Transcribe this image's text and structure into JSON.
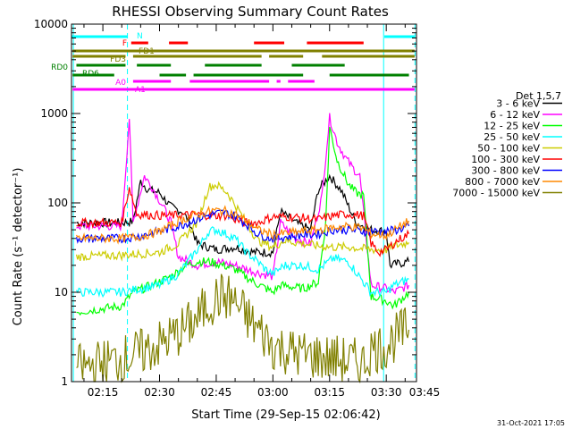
{
  "chart_data": {
    "type": "line",
    "title": "RHESSI Observing Summary Count Rates",
    "xlabel": "Start Time (29-Sep-15 02:06:42)",
    "ylabel": "Count Rate (s⁻¹ detector⁻¹)",
    "y_scale": "log",
    "ylim": [
      1,
      10000
    ],
    "xlim_minutes": [
      6.7,
      98.0
    ],
    "x_ticks": [
      {
        "m": 15,
        "label": "02:15"
      },
      {
        "m": 30,
        "label": "02:30"
      },
      {
        "m": 45,
        "label": "02:45"
      },
      {
        "m": 60,
        "label": "03:00"
      },
      {
        "m": 75,
        "label": "03:15"
      },
      {
        "m": 90,
        "label": "03:30"
      },
      {
        "m": 105,
        "label": "03:45"
      }
    ],
    "y_ticks": [
      {
        "v": 1,
        "label": "1"
      },
      {
        "v": 10,
        "label": "10"
      },
      {
        "v": 100,
        "label": "100"
      },
      {
        "v": 1000,
        "label": "1000"
      },
      {
        "v": 10000,
        "label": "10000"
      }
    ],
    "legend_title": "Det 1,5,7",
    "legend_position": "right",
    "series": [
      {
        "name": "3 - 6 keV",
        "color": "#000000",
        "points": [
          [
            8,
            60
          ],
          [
            20,
            60
          ],
          [
            23,
            62
          ],
          [
            25,
            175
          ],
          [
            27,
            140
          ],
          [
            30,
            130
          ],
          [
            33,
            90
          ],
          [
            36,
            80
          ],
          [
            38,
            60
          ],
          [
            40,
            35
          ],
          [
            45,
            30
          ],
          [
            50,
            32
          ],
          [
            55,
            28
          ],
          [
            60,
            28
          ],
          [
            62,
            80
          ],
          [
            66,
            60
          ],
          [
            70,
            50
          ],
          [
            72,
            140
          ],
          [
            75,
            200
          ],
          [
            78,
            140
          ],
          [
            82,
            60
          ],
          [
            86,
            50
          ],
          [
            90,
            48
          ],
          [
            91,
            20
          ],
          [
            96,
            22
          ]
        ]
      },
      {
        "name": "6 - 12 keV",
        "color": "#ff00ff",
        "points": [
          [
            8,
            55
          ],
          [
            20,
            55
          ],
          [
            22,
            900
          ],
          [
            23,
            60
          ],
          [
            26,
            200
          ],
          [
            28,
            150
          ],
          [
            31,
            90
          ],
          [
            33,
            60
          ],
          [
            35,
            25
          ],
          [
            40,
            20
          ],
          [
            45,
            22
          ],
          [
            50,
            20
          ],
          [
            55,
            17
          ],
          [
            60,
            15
          ],
          [
            62,
            60
          ],
          [
            66,
            40
          ],
          [
            70,
            35
          ],
          [
            73,
            120
          ],
          [
            75,
            900
          ],
          [
            77,
            480
          ],
          [
            79,
            330
          ],
          [
            81,
            250
          ],
          [
            83,
            200
          ],
          [
            86,
            12
          ],
          [
            90,
            11
          ],
          [
            92,
            10
          ],
          [
            96,
            12
          ]
        ]
      },
      {
        "name": "12 - 25 keV",
        "color": "#00ff00",
        "points": [
          [
            8,
            6
          ],
          [
            20,
            7
          ],
          [
            23,
            10
          ],
          [
            28,
            12
          ],
          [
            33,
            15
          ],
          [
            37,
            20
          ],
          [
            40,
            22
          ],
          [
            43,
            22
          ],
          [
            47,
            20
          ],
          [
            50,
            18
          ],
          [
            55,
            13
          ],
          [
            60,
            10
          ],
          [
            62,
            12
          ],
          [
            68,
            11
          ],
          [
            72,
            13
          ],
          [
            74,
            60
          ],
          [
            75,
            700
          ],
          [
            77,
            300
          ],
          [
            80,
            160
          ],
          [
            82,
            130
          ],
          [
            84,
            120
          ],
          [
            86,
            9
          ],
          [
            90,
            8
          ],
          [
            92,
            7
          ],
          [
            96,
            10
          ]
        ]
      },
      {
        "name": "25 - 50 keV",
        "color": "#00ffff",
        "points": [
          [
            8,
            10
          ],
          [
            20,
            10
          ],
          [
            25,
            11
          ],
          [
            30,
            12
          ],
          [
            35,
            16
          ],
          [
            40,
            30
          ],
          [
            43,
            48
          ],
          [
            45,
            50
          ],
          [
            48,
            44
          ],
          [
            50,
            40
          ],
          [
            53,
            28
          ],
          [
            56,
            22
          ],
          [
            58,
            18
          ],
          [
            60,
            16
          ],
          [
            63,
            20
          ],
          [
            68,
            20
          ],
          [
            72,
            18
          ],
          [
            76,
            24
          ],
          [
            80,
            22
          ],
          [
            86,
            10
          ],
          [
            90,
            10
          ],
          [
            92,
            12
          ],
          [
            96,
            14
          ]
        ]
      },
      {
        "name": "50 - 100 keV",
        "color": "#cccc00",
        "points": [
          [
            8,
            25
          ],
          [
            20,
            26
          ],
          [
            25,
            27
          ],
          [
            30,
            28
          ],
          [
            35,
            35
          ],
          [
            40,
            60
          ],
          [
            43,
            150
          ],
          [
            45,
            160
          ],
          [
            48,
            130
          ],
          [
            50,
            95
          ],
          [
            53,
            60
          ],
          [
            56,
            38
          ],
          [
            58,
            35
          ],
          [
            60,
            32
          ],
          [
            63,
            38
          ],
          [
            68,
            35
          ],
          [
            72,
            33
          ],
          [
            76,
            32
          ],
          [
            80,
            32
          ],
          [
            86,
            30
          ],
          [
            90,
            30
          ],
          [
            92,
            33
          ],
          [
            96,
            36
          ]
        ]
      },
      {
        "name": "100 - 300 keV",
        "color": "#ff0000",
        "points": [
          [
            8,
            60
          ],
          [
            20,
            60
          ],
          [
            22,
            150
          ],
          [
            24,
            75
          ],
          [
            28,
            73
          ],
          [
            32,
            72
          ],
          [
            36,
            73
          ],
          [
            40,
            74
          ],
          [
            44,
            72
          ],
          [
            48,
            72
          ],
          [
            52,
            60
          ],
          [
            56,
            60
          ],
          [
            60,
            70
          ],
          [
            64,
            70
          ],
          [
            68,
            68
          ],
          [
            72,
            65
          ],
          [
            76,
            72
          ],
          [
            80,
            75
          ],
          [
            84,
            72
          ],
          [
            86,
            35
          ],
          [
            88,
            28
          ],
          [
            90,
            30
          ],
          [
            93,
            38
          ],
          [
            96,
            45
          ]
        ]
      },
      {
        "name": "300 - 800 keV",
        "color": "#0000ff",
        "points": [
          [
            8,
            40
          ],
          [
            20,
            40
          ],
          [
            24,
            42
          ],
          [
            30,
            48
          ],
          [
            35,
            55
          ],
          [
            40,
            66
          ],
          [
            44,
            75
          ],
          [
            47,
            78
          ],
          [
            50,
            72
          ],
          [
            53,
            58
          ],
          [
            56,
            45
          ],
          [
            58,
            42
          ],
          [
            60,
            40
          ],
          [
            64,
            42
          ],
          [
            68,
            44
          ],
          [
            72,
            45
          ],
          [
            76,
            50
          ],
          [
            80,
            50
          ],
          [
            84,
            48
          ],
          [
            86,
            48
          ],
          [
            90,
            48
          ],
          [
            93,
            50
          ],
          [
            96,
            55
          ]
        ]
      },
      {
        "name": "800 - 7000 keV",
        "color": "#ff8800",
        "points": [
          [
            8,
            40
          ],
          [
            20,
            40
          ],
          [
            25,
            42
          ],
          [
            30,
            48
          ],
          [
            35,
            62
          ],
          [
            40,
            75
          ],
          [
            44,
            82
          ],
          [
            47,
            82
          ],
          [
            50,
            75
          ],
          [
            53,
            63
          ],
          [
            56,
            50
          ],
          [
            58,
            47
          ],
          [
            60,
            44
          ],
          [
            64,
            46
          ],
          [
            68,
            48
          ],
          [
            72,
            50
          ],
          [
            76,
            53
          ],
          [
            80,
            55
          ],
          [
            84,
            52
          ],
          [
            86,
            45
          ],
          [
            90,
            43
          ],
          [
            93,
            52
          ],
          [
            96,
            63
          ]
        ]
      },
      {
        "name": "7000 - 15000 keV",
        "color": "#808000",
        "points": [
          [
            8,
            1.4
          ],
          [
            15,
            1.6
          ],
          [
            20,
            1.8
          ],
          [
            25,
            2.1
          ],
          [
            30,
            2.6
          ],
          [
            35,
            3.5
          ],
          [
            40,
            5
          ],
          [
            43,
            7.5
          ],
          [
            46,
            9
          ],
          [
            49,
            8.5
          ],
          [
            52,
            6
          ],
          [
            55,
            4.2
          ],
          [
            58,
            3.2
          ],
          [
            60,
            2.5
          ],
          [
            64,
            2.2
          ],
          [
            68,
            2
          ],
          [
            72,
            1.9
          ],
          [
            76,
            1.8
          ],
          [
            80,
            1.7
          ],
          [
            84,
            1.6
          ],
          [
            86,
            2.3
          ],
          [
            90,
            2.5
          ],
          [
            92,
            3
          ],
          [
            94,
            3.5
          ],
          [
            96,
            3.8
          ]
        ]
      }
    ],
    "flag_labels": [
      {
        "text": "N",
        "color": "#00ffff"
      },
      {
        "text": "F",
        "color": "#ff0000"
      },
      {
        "text": "FD1",
        "color": "#808000"
      },
      {
        "text": "FD3",
        "color": "#808000"
      },
      {
        "text": "RD0",
        "color": "#008000"
      },
      {
        "text": "RD6",
        "color": "#008000"
      },
      {
        "text": "A0",
        "color": "#ff00ff"
      },
      {
        "text": "A1",
        "color": "#ff00ff"
      }
    ],
    "flag_bars": [
      {
        "flag": "N",
        "color": "#00ffff",
        "segments": [
          [
            6.7,
            21.5
          ],
          [
            89.5,
            97.5
          ]
        ]
      },
      {
        "flag": "F",
        "color": "#ff0000",
        "segments": [
          [
            22.5,
            27
          ],
          [
            32.5,
            37.5
          ],
          [
            55,
            63
          ],
          [
            69,
            84
          ]
        ]
      },
      {
        "flag": "FD1",
        "color": "#808000",
        "segments": [
          [
            7,
            97.5
          ]
        ]
      },
      {
        "flag": "FD3",
        "color": "#808000",
        "segments": [
          [
            7,
            21
          ],
          [
            23,
            57
          ],
          [
            59,
            68
          ],
          [
            73,
            97.5
          ]
        ]
      },
      {
        "flag": "RD0",
        "color": "#008000",
        "segments": [
          [
            8,
            21
          ],
          [
            24,
            33
          ],
          [
            42,
            57
          ],
          [
            65,
            79
          ]
        ]
      },
      {
        "flag": "RD6",
        "color": "#008000",
        "segments": [
          [
            7,
            18
          ],
          [
            30,
            37
          ],
          [
            39,
            68
          ],
          [
            75,
            96
          ]
        ]
      },
      {
        "flag": "A0",
        "color": "#ff00ff",
        "segments": [
          [
            23,
            33
          ],
          [
            38,
            59
          ],
          [
            61,
            62
          ],
          [
            64,
            71
          ]
        ]
      },
      {
        "flag": "A1",
        "color": "#ff00ff",
        "segments": [
          [
            7,
            97.5
          ]
        ]
      }
    ],
    "vlines": [
      {
        "m": 7.2,
        "color": "#00ffff",
        "style": "solid"
      },
      {
        "m": 21.5,
        "color": "#00ffff",
        "style": "dashed"
      },
      {
        "m": 89.3,
        "color": "#00ffff",
        "style": "solid"
      },
      {
        "m": 97.6,
        "color": "#00ffff",
        "style": "dashed"
      }
    ],
    "grid": false
  },
  "footer_timestamp": "31-Oct-2021 17:05"
}
